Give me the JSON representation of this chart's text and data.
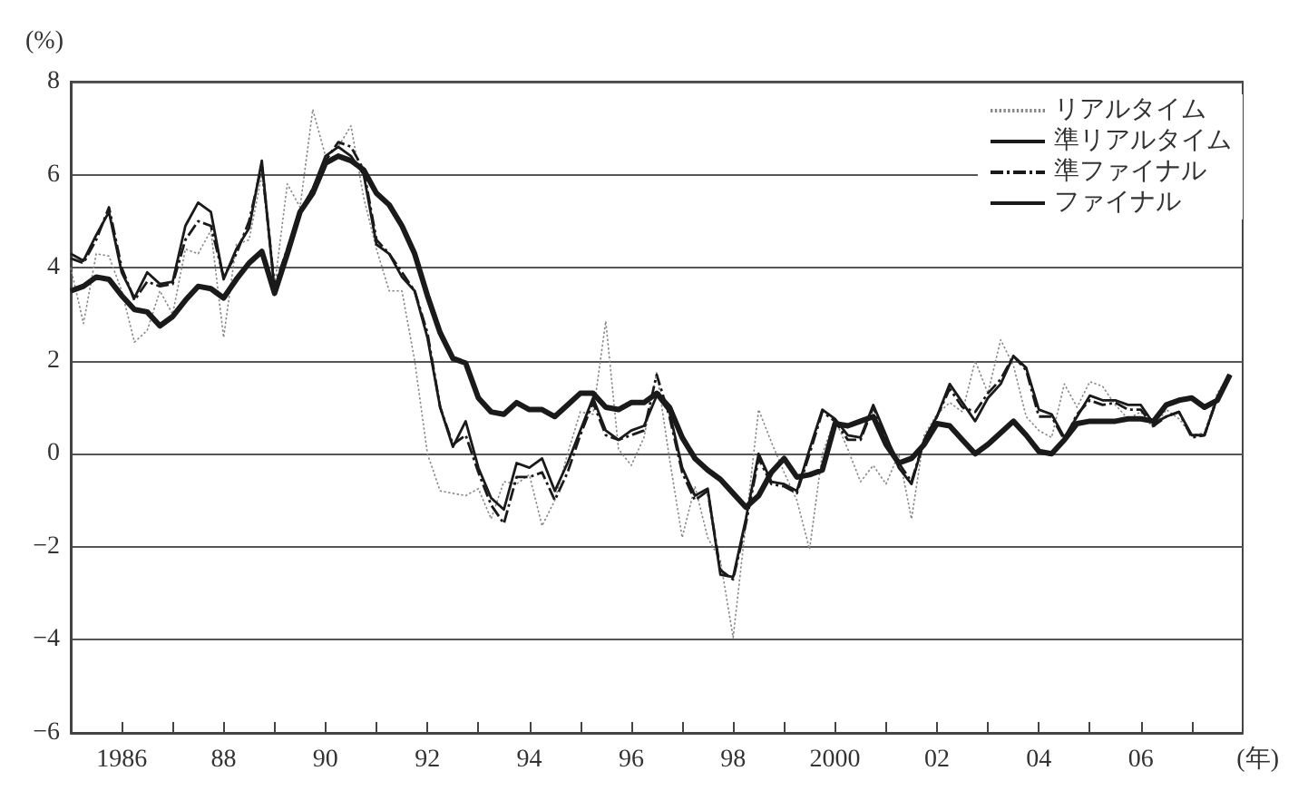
{
  "chart_data": {
    "type": "line",
    "ylabel": "(%)",
    "xlabel": "(年)",
    "x": [
      1985,
      1985.25,
      1985.5,
      1985.75,
      1986,
      1986.25,
      1986.5,
      1986.75,
      1987,
      1987.25,
      1987.5,
      1987.75,
      1988,
      1988.25,
      1988.5,
      1988.75,
      1989,
      1989.25,
      1989.5,
      1989.75,
      1990,
      1990.25,
      1990.5,
      1990.75,
      1991,
      1991.25,
      1991.5,
      1991.75,
      1992,
      1992.25,
      1992.5,
      1992.75,
      1993,
      1993.25,
      1993.5,
      1993.75,
      1994,
      1994.25,
      1994.5,
      1994.75,
      1995,
      1995.25,
      1995.5,
      1995.75,
      1996,
      1996.25,
      1996.5,
      1996.75,
      1997,
      1997.25,
      1997.5,
      1997.75,
      1998,
      1998.25,
      1998.5,
      1998.75,
      1999,
      1999.25,
      1999.5,
      1999.75,
      2000,
      2000.25,
      2000.5,
      2000.75,
      2001,
      2001.25,
      2001.5,
      2001.75,
      2002,
      2002.25,
      2002.5,
      2002.75,
      2003,
      2003.25,
      2003.5,
      2003.75,
      2004,
      2004.25,
      2004.5,
      2004.75,
      2005,
      2005.25,
      2005.5,
      2005.75,
      2006,
      2006.25,
      2006.5,
      2006.75,
      2007,
      2007.25,
      2007.5,
      2007.75
    ],
    "series": [
      {
        "name": "リアルタイム",
        "color": "#888888",
        "line_style": "dotted",
        "values": [
          4.0,
          2.8,
          4.3,
          4.25,
          3.5,
          2.4,
          2.65,
          3.5,
          3.0,
          4.4,
          4.3,
          4.8,
          2.5,
          4.5,
          4.6,
          6.0,
          3.6,
          5.8,
          5.3,
          7.4,
          6.4,
          6.6,
          7.05,
          5.5,
          4.4,
          3.5,
          3.5,
          2.0,
          0.0,
          -0.8,
          -0.85,
          -0.9,
          -0.75,
          -1.4,
          -0.6,
          -0.65,
          -0.45,
          -1.55,
          -1.0,
          0.0,
          0.9,
          0.85,
          2.85,
          0.1,
          -0.25,
          0.35,
          1.75,
          -0.1,
          -1.8,
          -0.7,
          -1.8,
          -2.3,
          -3.95,
          -1.5,
          0.95,
          0.25,
          -0.4,
          -1.0,
          -2.05,
          0.0,
          0.75,
          0.1,
          -0.6,
          -0.25,
          -0.65,
          0.0,
          -1.4,
          0.4,
          0.85,
          1.1,
          0.9,
          2.0,
          1.3,
          2.45,
          1.9,
          0.8,
          0.5,
          0.35,
          1.5,
          1.0,
          1.55,
          1.45,
          1.05,
          0.75,
          0.9,
          0.55,
          0.95,
          0.75,
          0.4,
          0.45,
          1.3,
          1.7
        ]
      },
      {
        "name": "準リアルタイム",
        "color": "#1a1a1a",
        "line_style": "solid",
        "values": [
          4.3,
          4.15,
          4.7,
          5.2,
          3.9,
          3.35,
          3.9,
          3.65,
          3.7,
          4.9,
          5.4,
          5.2,
          3.75,
          4.4,
          4.85,
          6.3,
          3.5,
          4.3,
          5.2,
          5.7,
          6.4,
          6.6,
          6.4,
          6.0,
          4.5,
          4.3,
          3.8,
          3.5,
          2.5,
          1.0,
          0.15,
          0.7,
          -0.3,
          -0.95,
          -1.2,
          -0.2,
          -0.3,
          -0.1,
          -0.8,
          -0.2,
          0.5,
          1.2,
          0.5,
          0.3,
          0.5,
          0.6,
          1.25,
          0.9,
          -0.3,
          -0.9,
          -0.75,
          -2.6,
          -2.65,
          -1.4,
          0.0,
          -0.6,
          -0.65,
          -0.8,
          0.1,
          0.95,
          0.75,
          0.4,
          0.35,
          1.05,
          0.4,
          -0.3,
          -0.65,
          0.3,
          0.8,
          1.5,
          1.1,
          0.7,
          1.2,
          1.5,
          2.1,
          1.85,
          0.95,
          0.85,
          0.35,
          0.8,
          1.25,
          1.15,
          1.15,
          1.05,
          1.05,
          0.65,
          0.8,
          0.9,
          0.4,
          0.4,
          1.2,
          1.7
        ]
      },
      {
        "name": "準ファイナル",
        "color": "#1a1a1a",
        "line_style": "dashed",
        "values": [
          4.2,
          4.1,
          4.6,
          5.3,
          4.0,
          3.3,
          3.7,
          3.6,
          3.65,
          4.6,
          5.0,
          4.9,
          3.8,
          4.3,
          5.0,
          6.2,
          3.6,
          4.4,
          5.2,
          5.7,
          6.3,
          6.7,
          6.6,
          6.1,
          4.6,
          4.3,
          3.9,
          3.5,
          2.6,
          1.0,
          0.2,
          0.4,
          -0.4,
          -1.1,
          -1.5,
          -0.5,
          -0.5,
          -0.4,
          -1.0,
          -0.4,
          0.4,
          1.1,
          0.4,
          0.3,
          0.4,
          0.5,
          1.7,
          0.8,
          -0.4,
          -1.0,
          -0.8,
          -2.5,
          -2.7,
          -1.5,
          -0.1,
          -0.65,
          -0.7,
          -0.85,
          0.0,
          0.9,
          0.7,
          0.3,
          0.3,
          1.0,
          0.35,
          -0.2,
          -0.6,
          0.3,
          0.8,
          1.4,
          1.0,
          0.9,
          1.3,
          1.6,
          2.1,
          1.8,
          0.8,
          0.8,
          0.3,
          0.85,
          1.15,
          1.05,
          1.1,
          0.95,
          0.95,
          0.6,
          0.8,
          0.9,
          0.35,
          0.4,
          1.2,
          1.7
        ]
      },
      {
        "name": "ファイナル",
        "color": "#1a1a1a",
        "line_style": "solid",
        "values": [
          3.5,
          3.6,
          3.8,
          3.75,
          3.4,
          3.1,
          3.05,
          2.75,
          2.95,
          3.3,
          3.6,
          3.55,
          3.35,
          3.75,
          4.1,
          4.35,
          3.45,
          4.3,
          5.2,
          5.6,
          6.25,
          6.4,
          6.3,
          6.1,
          5.6,
          5.35,
          4.9,
          4.3,
          3.4,
          2.6,
          2.05,
          1.95,
          1.2,
          0.9,
          0.85,
          1.1,
          0.95,
          0.95,
          0.8,
          1.05,
          1.3,
          1.3,
          1.0,
          0.95,
          1.1,
          1.1,
          1.3,
          1.0,
          0.35,
          -0.1,
          -0.35,
          -0.55,
          -0.85,
          -1.15,
          -0.9,
          -0.4,
          -0.1,
          -0.5,
          -0.45,
          -0.35,
          0.65,
          0.6,
          0.7,
          0.8,
          0.2,
          -0.2,
          -0.1,
          0.2,
          0.65,
          0.6,
          0.3,
          0.0,
          0.2,
          0.45,
          0.7,
          0.4,
          0.05,
          0.0,
          0.3,
          0.65,
          0.7,
          0.7,
          0.7,
          0.75,
          0.75,
          0.7,
          1.05,
          1.15,
          1.2,
          1.0,
          1.15,
          1.7
        ]
      }
    ],
    "xlim": [
      1985,
      2008
    ],
    "xticks": [
      {
        "value": 1986,
        "label": "1986"
      },
      {
        "value": 1987,
        "label": null
      },
      {
        "value": 1988,
        "label": "88"
      },
      {
        "value": 1989,
        "label": null
      },
      {
        "value": 1990,
        "label": "90"
      },
      {
        "value": 1991,
        "label": null
      },
      {
        "value": 1992,
        "label": "92"
      },
      {
        "value": 1993,
        "label": null
      },
      {
        "value": 1994,
        "label": "94"
      },
      {
        "value": 1995,
        "label": null
      },
      {
        "value": 1996,
        "label": "96"
      },
      {
        "value": 1997,
        "label": null
      },
      {
        "value": 1998,
        "label": "98"
      },
      {
        "value": 1999,
        "label": null
      },
      {
        "value": 2000,
        "label": "2000"
      },
      {
        "value": 2001,
        "label": null
      },
      {
        "value": 2002,
        "label": "02"
      },
      {
        "value": 2003,
        "label": null
      },
      {
        "value": 2004,
        "label": "04"
      },
      {
        "value": 2005,
        "label": null
      },
      {
        "value": 2006,
        "label": "06"
      },
      {
        "value": 2007,
        "label": null
      }
    ],
    "ylim": [
      -6,
      8
    ],
    "yticks": [
      -6,
      -4,
      -2,
      0,
      2,
      4,
      6,
      8
    ],
    "grid": "y",
    "legend": "top right",
    "marker": "none"
  }
}
